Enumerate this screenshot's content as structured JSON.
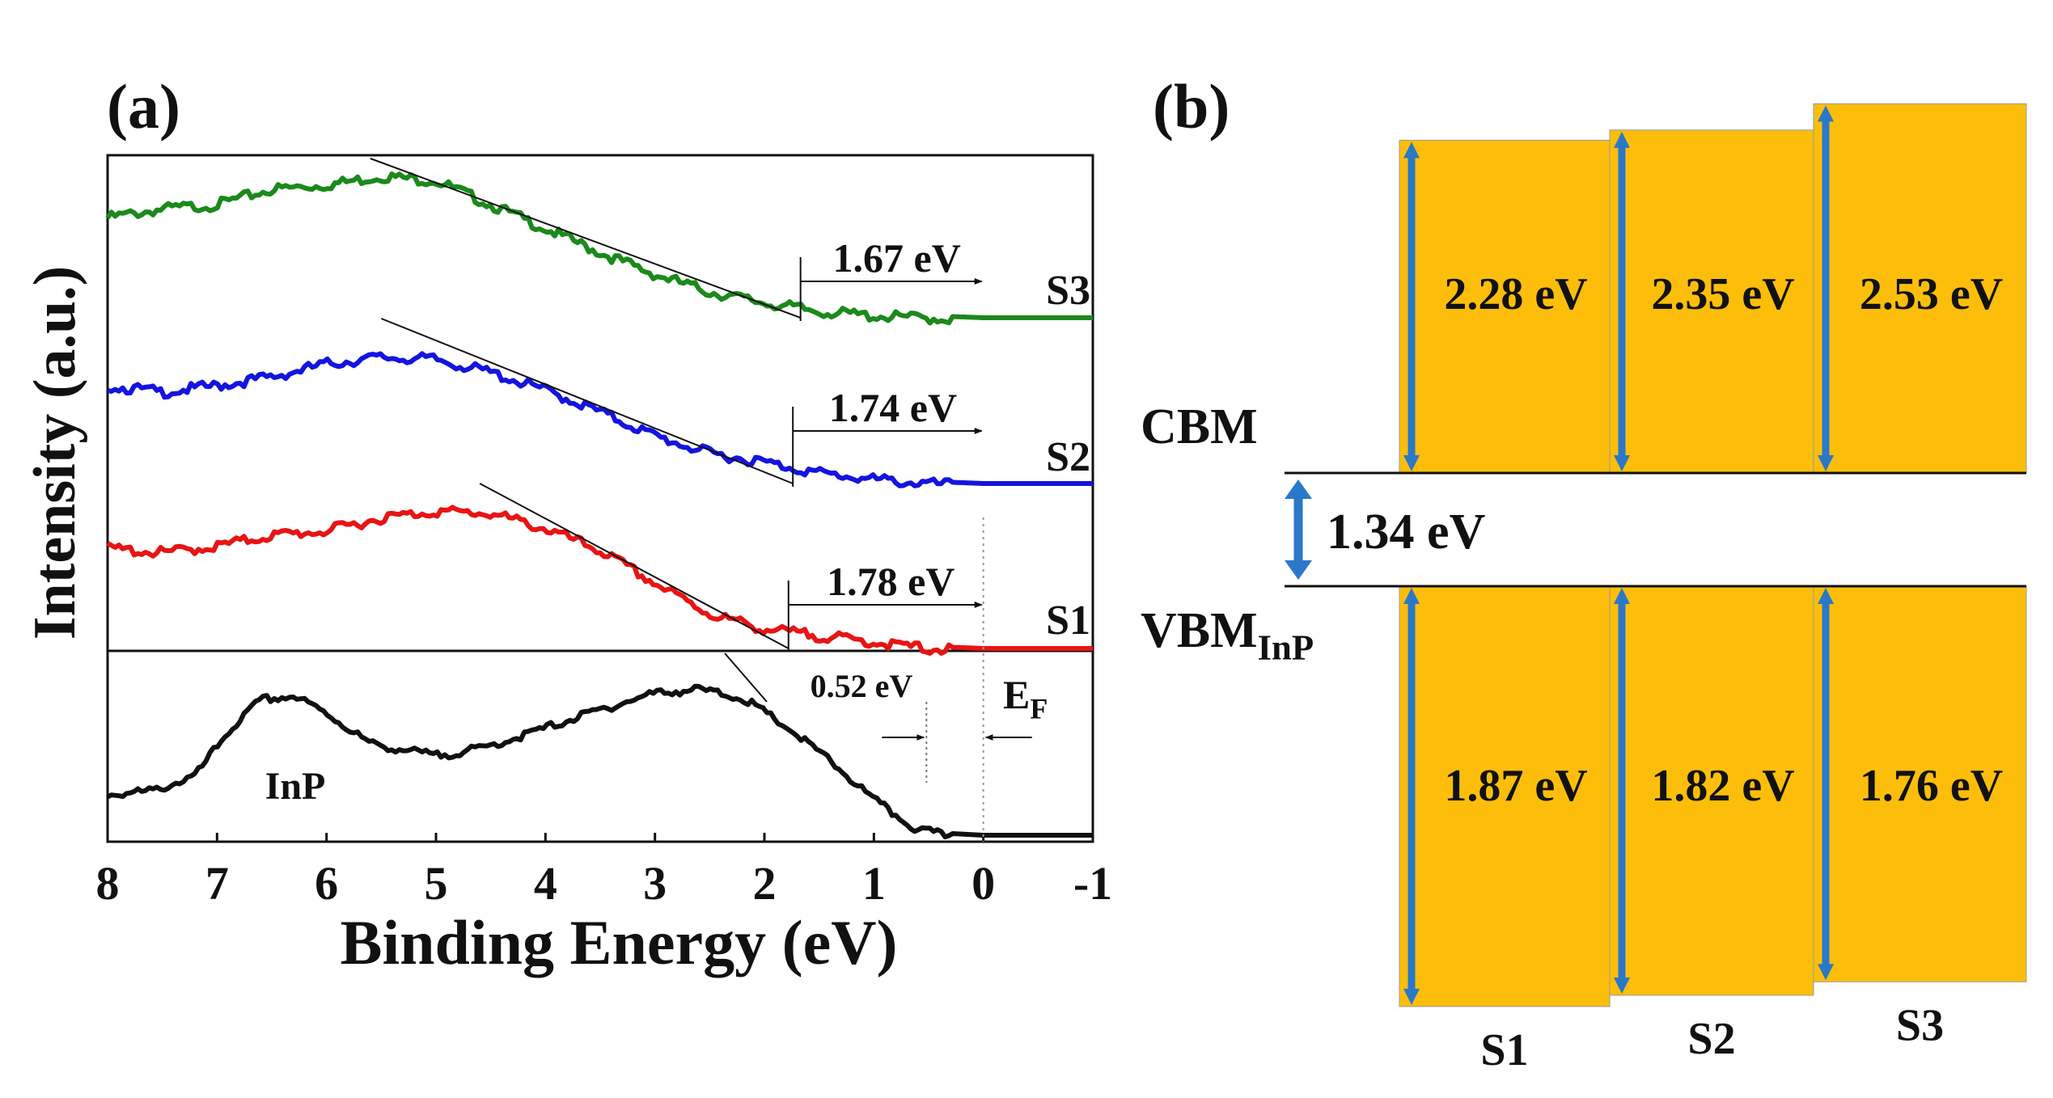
{
  "panel_a": {
    "label": "(a)",
    "chart_data": {
      "type": "line",
      "title": "",
      "xlabel": "Binding Energy (eV)",
      "ylabel": "Intensity (a.u.)",
      "xlim": [
        8,
        -1
      ],
      "xticks": [
        "8",
        "7",
        "6",
        "5",
        "4",
        "3",
        "2",
        "1",
        "0",
        "-1"
      ],
      "series": [
        {
          "name": "S3",
          "color": "#1a8a1a",
          "x": [
            8.0,
            7.5,
            7.0,
            6.5,
            6.0,
            5.5,
            5.0,
            4.5,
            4.0,
            3.5,
            3.0,
            2.5,
            2.0,
            1.5,
            1.0,
            0.5,
            0.0,
            -0.5,
            -1.0
          ],
          "y": [
            0.47,
            0.51,
            0.53,
            0.6,
            0.62,
            0.66,
            0.64,
            0.53,
            0.42,
            0.31,
            0.21,
            0.13,
            0.08,
            0.04,
            0.02,
            0.01,
            0.0,
            0.0,
            0.0
          ],
          "vbm_eV": 1.67,
          "label": "1.67 eV"
        },
        {
          "name": "S2",
          "color": "#1414e0",
          "x": [
            8.0,
            7.5,
            7.0,
            6.5,
            6.0,
            5.5,
            5.0,
            4.5,
            4.0,
            3.5,
            3.0,
            2.5,
            2.0,
            1.5,
            1.0,
            0.5,
            0.0,
            -0.5,
            -1.0
          ],
          "y": [
            0.46,
            0.43,
            0.46,
            0.5,
            0.56,
            0.59,
            0.58,
            0.52,
            0.44,
            0.34,
            0.23,
            0.15,
            0.11,
            0.06,
            0.03,
            0.01,
            0.0,
            0.0,
            0.0
          ],
          "vbm_eV": 1.74,
          "label": "1.74 eV"
        },
        {
          "name": "S1",
          "color": "#e81414",
          "x": [
            8.0,
            7.5,
            7.0,
            6.5,
            6.0,
            5.5,
            5.0,
            4.5,
            4.0,
            3.5,
            3.0,
            2.5,
            2.0,
            1.5,
            1.0,
            0.5,
            0.0,
            -0.5,
            -1.0
          ],
          "y": [
            0.47,
            0.45,
            0.48,
            0.53,
            0.55,
            0.61,
            0.64,
            0.63,
            0.56,
            0.46,
            0.31,
            0.17,
            0.1,
            0.07,
            0.04,
            0.01,
            0.0,
            0.0,
            0.0
          ],
          "vbm_eV": 1.78,
          "label": "1.78 eV"
        },
        {
          "name": "InP",
          "color": "#111111",
          "x": [
            8.0,
            7.6,
            7.2,
            6.9,
            6.6,
            6.3,
            6.0,
            5.6,
            5.0,
            4.6,
            4.2,
            3.6,
            3.0,
            2.6,
            2.2,
            1.8,
            1.4,
            1.0,
            0.6,
            0.3,
            0.0,
            -0.5,
            -1.0
          ],
          "y": [
            0.25,
            0.27,
            0.36,
            0.62,
            0.81,
            0.83,
            0.73,
            0.55,
            0.48,
            0.52,
            0.6,
            0.73,
            0.85,
            0.87,
            0.82,
            0.65,
            0.45,
            0.22,
            0.04,
            0.01,
            0.0,
            0.0,
            0.0
          ],
          "vbm_eV": 0.52,
          "label": "0.52 eV"
        }
      ],
      "annotations": {
        "fermi_level": "E",
        "fermi_sub": "F",
        "inp_label": "InP"
      }
    }
  },
  "panel_b": {
    "label": "(b)",
    "chart_data": {
      "type": "band-diagram",
      "unit": "eV",
      "inp_gap": 1.34,
      "inp_gap_label": "1.34 eV",
      "cbm_label": "CBM",
      "vbm_label": "VBM",
      "vbm_sub": "InP",
      "samples": [
        {
          "name": "S1",
          "cb_offset": 2.28,
          "cb_label": "2.28 eV",
          "vb_offset": 1.87,
          "vb_label": "1.87 eV"
        },
        {
          "name": "S2",
          "cb_offset": 2.35,
          "cb_label": "2.35 eV",
          "vb_offset": 1.82,
          "vb_label": "1.82 eV"
        },
        {
          "name": "S3",
          "cb_offset": 2.53,
          "cb_label": "2.53 eV",
          "vb_offset": 1.76,
          "vb_label": "1.76 eV"
        }
      ],
      "box_color": "#fcbe0a",
      "arrow_color": "#2a78c9"
    }
  }
}
